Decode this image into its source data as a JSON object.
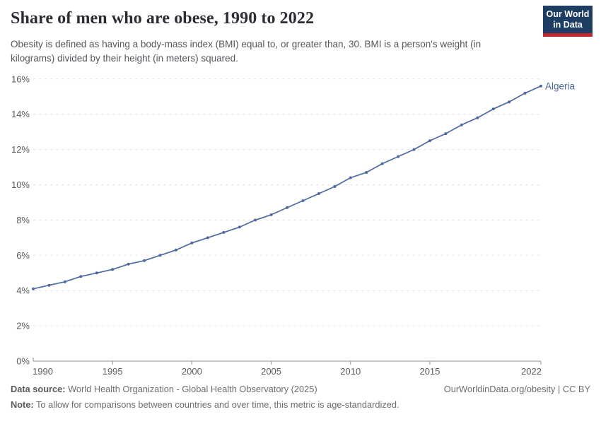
{
  "header": {
    "title": "Share of men who are obese, 1990 to 2022",
    "subtitle": "Obesity is defined as having a body-mass index (BMI) equal to, or greater than, 30. BMI is a person's weight (in kilograms) divided by their height (in meters) squared.",
    "logo": {
      "line1": "Our World",
      "line2": "in Data"
    }
  },
  "chart_data": {
    "type": "line",
    "title": "Share of men who are obese, 1990 to 2022",
    "xlabel": "",
    "ylabel": "",
    "xlim": [
      1990,
      2022
    ],
    "ylim": [
      0,
      16
    ],
    "grid": "horizontal-dashed",
    "legend_position": "end-of-line-label",
    "x_ticks": [
      1990,
      1995,
      2000,
      2005,
      2010,
      2015,
      2022
    ],
    "y_ticks": [
      0,
      2,
      4,
      6,
      8,
      10,
      12,
      14,
      16
    ],
    "y_tick_suffix": "%",
    "series": [
      {
        "name": "Algeria",
        "color": "#4d6aa0",
        "x": [
          1990,
          1991,
          1992,
          1993,
          1994,
          1995,
          1996,
          1997,
          1998,
          1999,
          2000,
          2001,
          2002,
          2003,
          2004,
          2005,
          2006,
          2007,
          2008,
          2009,
          2010,
          2011,
          2012,
          2013,
          2014,
          2015,
          2016,
          2017,
          2018,
          2019,
          2020,
          2021,
          2022
        ],
        "values": [
          4.1,
          4.3,
          4.5,
          4.8,
          5.0,
          5.2,
          5.5,
          5.7,
          6.0,
          6.3,
          6.7,
          7.0,
          7.3,
          7.6,
          8.0,
          8.3,
          8.7,
          9.1,
          9.5,
          9.9,
          10.4,
          10.7,
          11.2,
          11.6,
          12.0,
          12.5,
          12.9,
          13.4,
          13.8,
          14.3,
          14.7,
          15.2,
          15.6
        ]
      }
    ],
    "colors": {
      "grid": "#e3e3e3",
      "axis": "#929292",
      "tick_label": "#5b5b5b"
    }
  },
  "footer": {
    "source_label": "Data source:",
    "source_text": " World Health Organization - Global Health Observatory (2025)",
    "note_label": "Note:",
    "note_text": " To allow for comparisons between countries and over time, this metric is age-standardized.",
    "rights": "OurWorldinData.org/obesity | CC BY"
  }
}
